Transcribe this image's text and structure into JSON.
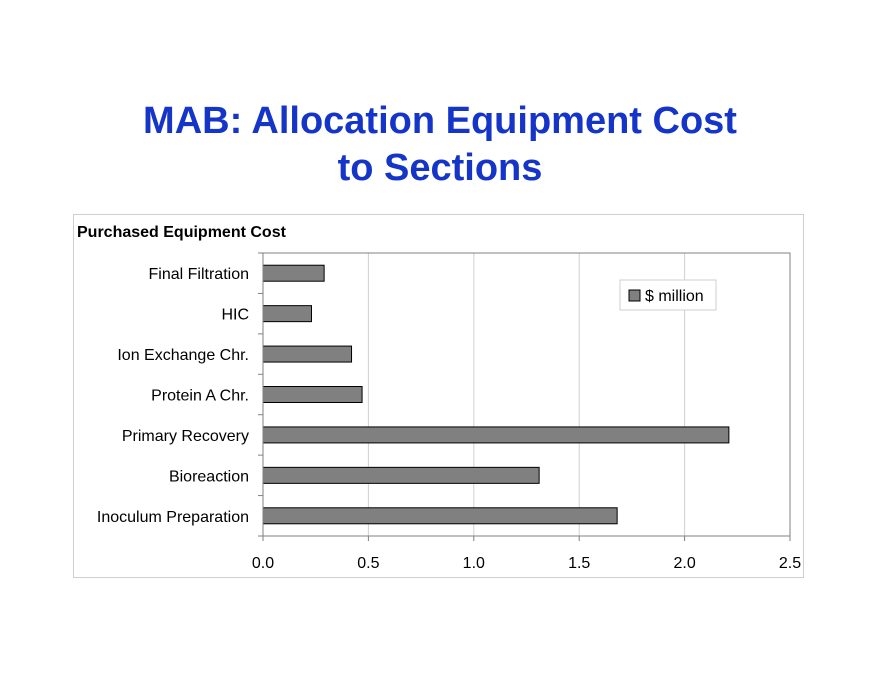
{
  "slide": {
    "title_line1": "MAB: Allocation Equipment Cost",
    "title_line2": "to Sections"
  },
  "colors": {
    "title": "#1535c8",
    "bar_fill": "#808080",
    "bar_stroke": "#000000",
    "gridline": "#d0d0d0",
    "plot_border": "#808080"
  },
  "chart_data": {
    "type": "bar",
    "orientation": "horizontal",
    "title": "Purchased Equipment Cost",
    "xlabel": "",
    "ylabel": "",
    "categories": [
      "Final Filtration",
      "HIC",
      "Ion Exchange Chr.",
      "Protein A Chr.",
      "Primary Recovery",
      "Bioreaction",
      "Inoculum Preparation"
    ],
    "series": [
      {
        "name": "$ million",
        "values": [
          0.29,
          0.23,
          0.42,
          0.47,
          2.21,
          1.31,
          1.68
        ]
      }
    ],
    "xlim": [
      0,
      2.5
    ],
    "x_ticks": [
      "0.0",
      "0.5",
      "1.0",
      "1.5",
      "2.0",
      "2.5"
    ],
    "grid": "vertical",
    "legend_position": "top-right"
  }
}
